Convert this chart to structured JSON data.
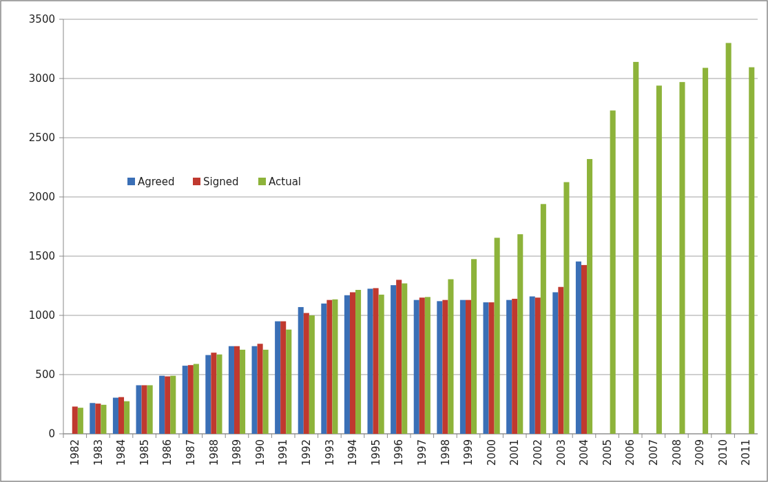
{
  "chart_data": {
    "type": "bar",
    "categories": [
      "1982",
      "1983",
      "1984",
      "1985",
      "1986",
      "1987",
      "1988",
      "1989",
      "1990",
      "1991",
      "1992",
      "1993",
      "1994",
      "1995",
      "1996",
      "1997",
      "1998",
      "1999",
      "2000",
      "2001",
      "2002",
      "2003",
      "2004",
      "2005",
      "2006",
      "2007",
      "2008",
      "2009",
      "2010",
      "2011"
    ],
    "series": [
      {
        "name": "Agreed",
        "color": "#3a6fb6",
        "values": [
          null,
          260,
          305,
          410,
          490,
          575,
          665,
          740,
          740,
          950,
          1070,
          1100,
          1170,
          1225,
          1255,
          1130,
          1120,
          1130,
          1110,
          1130,
          1160,
          1195,
          1455,
          null,
          null,
          null,
          null,
          null,
          null,
          null
        ]
      },
      {
        "name": "Signed",
        "color": "#c0392f",
        "values": [
          230,
          255,
          310,
          410,
          485,
          580,
          685,
          740,
          760,
          950,
          1020,
          1130,
          1195,
          1230,
          1300,
          1150,
          1130,
          1130,
          1110,
          1140,
          1150,
          1240,
          1425,
          null,
          null,
          null,
          null,
          null,
          null,
          null
        ]
      },
      {
        "name": "Actual",
        "color": "#8db33a",
        "values": [
          220,
          245,
          275,
          410,
          490,
          590,
          670,
          710,
          710,
          880,
          1000,
          1135,
          1215,
          1175,
          1270,
          1155,
          1305,
          1475,
          1655,
          1685,
          1940,
          2125,
          2320,
          2730,
          3140,
          2940,
          2970,
          3090,
          3300,
          3095
        ]
      }
    ],
    "ylim": [
      0,
      3500
    ],
    "yticks": [
      0,
      500,
      1000,
      1500,
      2000,
      2500,
      3000,
      3500
    ],
    "grid": "y",
    "legend": "left"
  }
}
